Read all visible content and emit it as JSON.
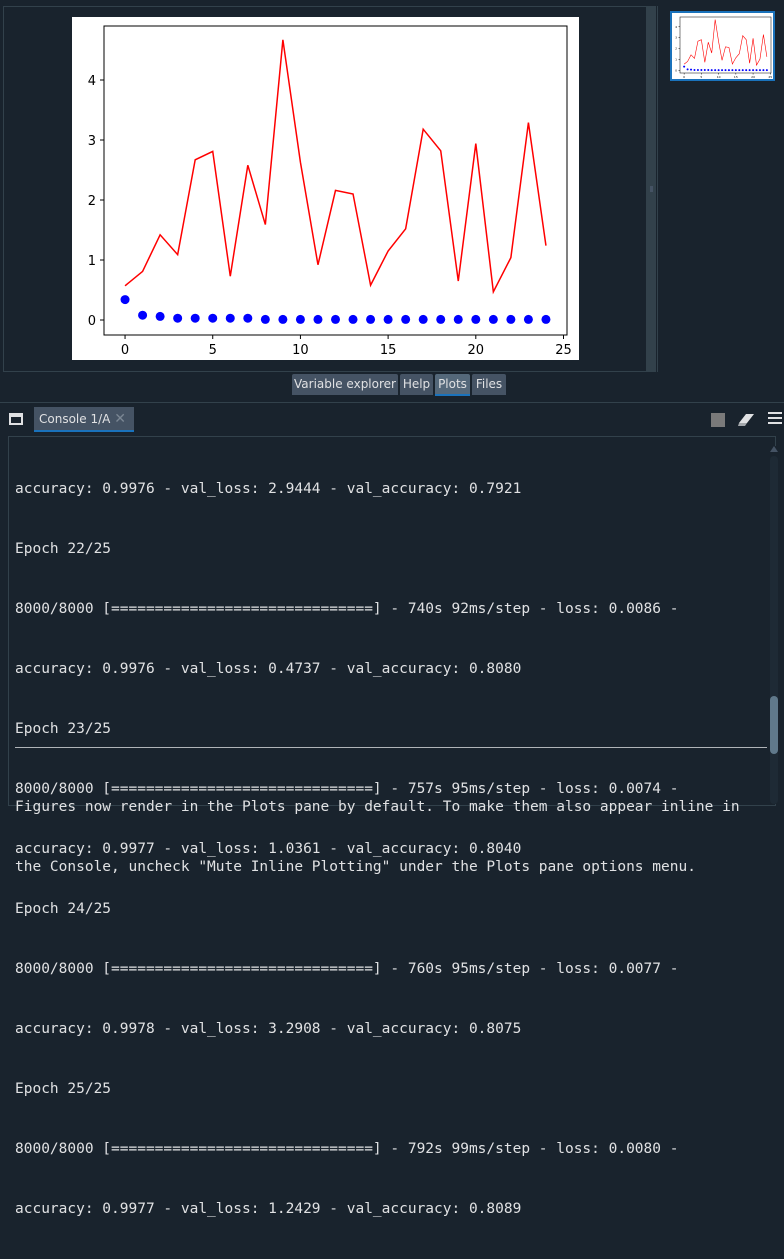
{
  "plot": {
    "chart_data": {
      "type": "line",
      "x": [
        0,
        1,
        2,
        3,
        4,
        5,
        6,
        7,
        8,
        9,
        10,
        11,
        12,
        13,
        14,
        15,
        16,
        17,
        18,
        19,
        20,
        21,
        22,
        23,
        24
      ],
      "xlim": [
        -1.2,
        25.2
      ],
      "ylim": [
        -0.25,
        4.9
      ],
      "xticks": [
        "0",
        "5",
        "10",
        "15",
        "20",
        "25"
      ],
      "yticks": [
        "0",
        "1",
        "2",
        "3",
        "4"
      ],
      "series": [
        {
          "style": "line",
          "color": "#ff0000",
          "values": [
            0.57,
            0.81,
            1.42,
            1.09,
            2.67,
            2.81,
            0.73,
            2.58,
            1.59,
            4.67,
            2.63,
            0.92,
            2.16,
            2.1,
            0.58,
            1.15,
            1.52,
            3.18,
            2.82,
            0.65,
            2.94,
            0.47,
            1.04,
            3.29,
            1.24
          ]
        },
        {
          "style": "scatter",
          "color": "#0000ff",
          "values": [
            0.34,
            0.08,
            0.06,
            0.03,
            0.03,
            0.03,
            0.03,
            0.03,
            0.01,
            0.01,
            0.01,
            0.01,
            0.01,
            0.01,
            0.01,
            0.01,
            0.01,
            0.01,
            0.01,
            0.01,
            0.01,
            0.01,
            0.01,
            0.01,
            0.01
          ]
        }
      ]
    }
  },
  "tabs": [
    {
      "label": "Variable explorer"
    },
    {
      "label": "Help"
    },
    {
      "label": "Plots"
    },
    {
      "label": "Files"
    }
  ],
  "console": {
    "tab_label": "Console 1/A",
    "close_glyph": "✕",
    "lines": [
      "accuracy: 0.9976 - val_loss: 2.9444 - val_accuracy: 0.7921",
      "Epoch 22/25",
      "8000/8000 [==============================] - 740s 92ms/step - loss: 0.0086 -",
      "accuracy: 0.9976 - val_loss: 0.4737 - val_accuracy: 0.8080",
      "Epoch 23/25",
      "8000/8000 [==============================] - 757s 95ms/step - loss: 0.0074 -",
      "accuracy: 0.9977 - val_loss: 1.0361 - val_accuracy: 0.8040",
      "Epoch 24/25",
      "8000/8000 [==============================] - 760s 95ms/step - loss: 0.0077 -",
      "accuracy: 0.9978 - val_loss: 3.2908 - val_accuracy: 0.8075",
      "Epoch 25/25",
      "8000/8000 [==============================] - 792s 99ms/step - loss: 0.0080 -",
      "accuracy: 0.9977 - val_loss: 1.2429 - val_accuracy: 0.8089"
    ],
    "notice": [
      "Figures now render in the Plots pane by default. To make them also appear inline in",
      "the Console, uncheck \"Mute Inline Plotting\" under the Plots pane options menu."
    ]
  },
  "colors": {
    "background": "#19232d",
    "tab_active_accent": "#1a72bb",
    "line_series": "#ff0000",
    "scatter_series": "#0000ff"
  },
  "icons": [
    "undock-icon",
    "close-icon",
    "stop-icon",
    "eraser-icon",
    "menu-icon"
  ]
}
